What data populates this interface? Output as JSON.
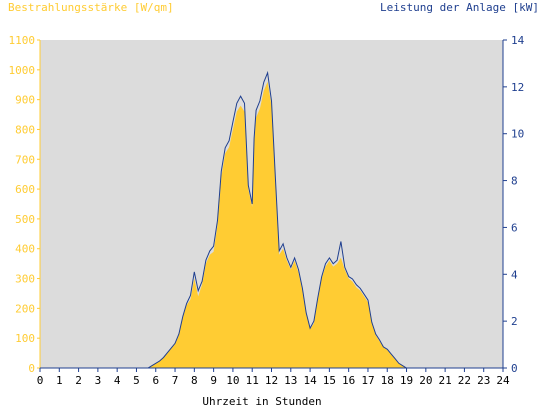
{
  "chart_data": {
    "type": "area",
    "left_axis_title": "Bestrahlungsstärke [W/qm]",
    "right_axis_title": "Leistung der Anlage [kW]",
    "xlabel": "Uhrzeit in Stunden",
    "xlim": [
      0,
      24
    ],
    "ylim_left": [
      0,
      1100
    ],
    "ylim_right": [
      0,
      14
    ],
    "x_ticks": [
      0,
      1,
      2,
      3,
      4,
      5,
      6,
      7,
      8,
      9,
      10,
      11,
      12,
      13,
      14,
      15,
      16,
      17,
      18,
      19,
      20,
      21,
      22,
      23,
      24
    ],
    "y_ticks_left": [
      0,
      100,
      200,
      300,
      400,
      500,
      600,
      700,
      800,
      900,
      1000,
      1100
    ],
    "y_ticks_right": [
      0,
      2,
      4,
      6,
      8,
      10,
      12,
      14
    ],
    "grid": false,
    "series": [
      {
        "name": "Bestrahlungsstärke [W/qm]",
        "axis": "left",
        "style": "filled area",
        "color": "#FFCC33",
        "x": [
          0,
          5.6,
          5.8,
          6.0,
          6.2,
          6.4,
          6.6,
          6.8,
          7.0,
          7.2,
          7.4,
          7.6,
          7.8,
          8.0,
          8.2,
          8.4,
          8.6,
          8.8,
          9.0,
          9.2,
          9.4,
          9.6,
          9.8,
          10.0,
          10.2,
          10.4,
          10.6,
          10.8,
          11.0,
          11.1,
          11.2,
          11.4,
          11.6,
          11.8,
          12.0,
          12.2,
          12.4,
          12.6,
          12.8,
          13.0,
          13.2,
          13.4,
          13.6,
          13.8,
          14.0,
          14.2,
          14.4,
          14.6,
          14.8,
          15.0,
          15.2,
          15.4,
          15.6,
          15.8,
          16.0,
          16.2,
          16.4,
          16.6,
          16.8,
          17.0,
          17.2,
          17.4,
          17.6,
          17.8,
          18.0,
          18.2,
          18.4,
          18.6,
          18.8,
          19.0,
          19.2,
          24
        ],
        "values": [
          0,
          0,
          8,
          15,
          25,
          35,
          50,
          65,
          80,
          110,
          170,
          210,
          230,
          300,
          240,
          280,
          350,
          380,
          390,
          480,
          640,
          720,
          740,
          800,
          860,
          880,
          860,
          600,
          540,
          750,
          840,
          870,
          930,
          960,
          880,
          620,
          380,
          400,
          360,
          330,
          360,
          320,
          260,
          180,
          130,
          150,
          230,
          300,
          340,
          360,
          340,
          350,
          370,
          330,
          300,
          290,
          270,
          260,
          240,
          220,
          150,
          110,
          90,
          70,
          60,
          45,
          30,
          15,
          8,
          0,
          0,
          0
        ]
      },
      {
        "name": "Leistung der Anlage [kW]",
        "axis": "right",
        "style": "line",
        "color": "#1F3F8F",
        "x": [
          0,
          5.6,
          5.8,
          6.0,
          6.2,
          6.4,
          6.6,
          6.8,
          7.0,
          7.2,
          7.4,
          7.6,
          7.8,
          8.0,
          8.2,
          8.4,
          8.6,
          8.8,
          9.0,
          9.2,
          9.4,
          9.6,
          9.8,
          10.0,
          10.2,
          10.4,
          10.6,
          10.8,
          11.0,
          11.1,
          11.2,
          11.4,
          11.6,
          11.8,
          12.0,
          12.2,
          12.4,
          12.6,
          12.8,
          13.0,
          13.2,
          13.4,
          13.6,
          13.8,
          14.0,
          14.2,
          14.4,
          14.6,
          14.8,
          15.0,
          15.2,
          15.4,
          15.6,
          15.8,
          16.0,
          16.2,
          16.4,
          16.6,
          16.8,
          17.0,
          17.2,
          17.4,
          17.6,
          17.8,
          18.0,
          18.2,
          18.4,
          18.6,
          18.8,
          19.0,
          19.2,
          24
        ],
        "values": [
          0,
          0,
          0.1,
          0.2,
          0.3,
          0.45,
          0.65,
          0.85,
          1.05,
          1.45,
          2.2,
          2.75,
          3.1,
          4.1,
          3.3,
          3.7,
          4.6,
          5.0,
          5.2,
          6.3,
          8.4,
          9.4,
          9.7,
          10.5,
          11.3,
          11.6,
          11.3,
          7.8,
          7.0,
          9.8,
          11.0,
          11.4,
          12.2,
          12.6,
          11.4,
          8.1,
          5.0,
          5.3,
          4.7,
          4.3,
          4.7,
          4.2,
          3.4,
          2.35,
          1.7,
          2.0,
          3.0,
          3.9,
          4.45,
          4.7,
          4.45,
          4.6,
          5.4,
          4.3,
          3.9,
          3.8,
          3.55,
          3.4,
          3.15,
          2.9,
          1.95,
          1.45,
          1.2,
          0.9,
          0.8,
          0.6,
          0.4,
          0.2,
          0.1,
          0,
          0,
          0
        ]
      }
    ]
  },
  "colors": {
    "plot_background": "#DCDCDC",
    "left_axis": "#FFCC33",
    "right_axis": "#1F3F8F",
    "x_axis_text": "#000000"
  }
}
